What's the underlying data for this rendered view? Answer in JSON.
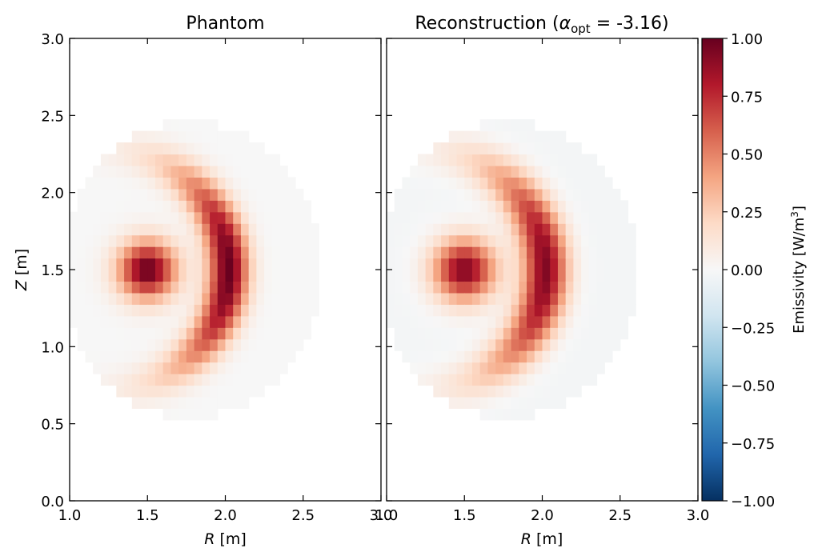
{
  "chart_data": [
    {
      "type": "heatmap",
      "title": "Phantom",
      "xlabel_var": "R",
      "xlabel_unit": "[m]",
      "ylabel_var": "Z",
      "ylabel_unit": "[m]",
      "xlim": [
        1.0,
        3.0
      ],
      "ylim": [
        0.0,
        3.0
      ],
      "xticks": [
        "1.0",
        "1.5",
        "2.0",
        "2.5",
        "3.0"
      ],
      "yticks": [
        "0.0",
        "0.5",
        "1.0",
        "1.5",
        "2.0",
        "2.5",
        "3.0"
      ],
      "domain": {
        "center_r": 1.78,
        "center_z": 1.5,
        "radius": 0.96
      },
      "blobs": [
        {
          "shape": "gaussian",
          "r": 1.5,
          "z": 1.5,
          "amplitude": 1.0,
          "width": 0.13
        },
        {
          "shape": "arc",
          "center_r": 1.25,
          "center_z": 1.5,
          "radius": 0.77,
          "amplitude": 1.0,
          "radial_width": 0.09,
          "angular_width_deg": 38
        }
      ]
    },
    {
      "type": "heatmap",
      "title_text": "Reconstruction (",
      "title_symbol": "α",
      "title_subscript": "opt",
      "title_value": " = -3.16)",
      "xlabel_var": "R",
      "xlabel_unit": "[m]",
      "xlim": [
        1.0,
        3.0
      ],
      "ylim": [
        0.0,
        3.0
      ],
      "xticks": [
        "1.0",
        "1.5",
        "2.0",
        "2.5",
        "3.0"
      ],
      "domain": {
        "center_r": 1.78,
        "center_z": 1.5,
        "radius": 0.96
      },
      "blobs": [
        {
          "shape": "gaussian",
          "r": 1.5,
          "z": 1.5,
          "amplitude": 0.95,
          "width": 0.14
        },
        {
          "shape": "arc",
          "center_r": 1.25,
          "center_z": 1.5,
          "radius": 0.77,
          "amplitude": 0.95,
          "radial_width": 0.1,
          "angular_width_deg": 40
        }
      ],
      "background_level": -0.02
    }
  ],
  "colorbar": {
    "label": "Emissivity [W/m",
    "label_sup": "3",
    "label_end": "]",
    "colormap": "RdBu_r",
    "range": [
      -1.0,
      1.0
    ],
    "ticks": [
      "1.00",
      "0.75",
      "0.50",
      "0.25",
      "0.00",
      "−0.25",
      "−0.50",
      "−0.75",
      "−1.00"
    ],
    "tick_values": [
      1.0,
      0.75,
      0.5,
      0.25,
      0.0,
      -0.25,
      -0.5,
      -0.75,
      -1.0
    ]
  }
}
